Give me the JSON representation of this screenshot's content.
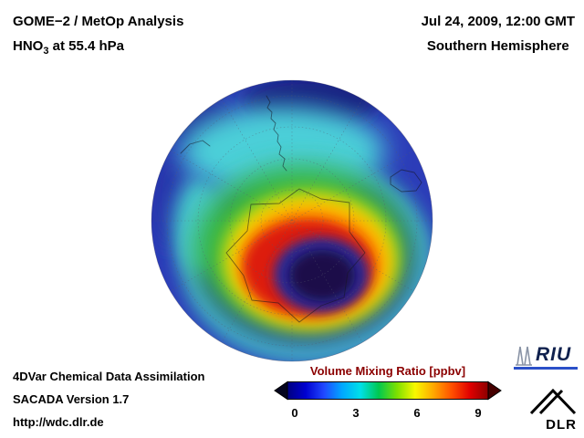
{
  "header": {
    "title_line1": "GOME−2 / MetOp Analysis",
    "species_prefix": "HNO",
    "species_sub": "3",
    "species_suffix": " at 55.4 hPa",
    "datetime": "Jul 24, 2009, 12:00 GMT",
    "region": "Southern Hemisphere"
  },
  "footer": {
    "line1": "4DVar Chemical Data Assimilation",
    "line2": "SACADA Version 1.7",
    "line3": "http://wdc.dlr.de"
  },
  "colorbar": {
    "title": "Volume Mixing Ratio [ppbv]",
    "ticks": [
      "0",
      "3",
      "6",
      "9"
    ],
    "title_color": "#8b0000",
    "under_arrow_color": "#05051e",
    "over_arrow_color": "#460000",
    "gradient": [
      "#000080",
      "#0000d0",
      "#2048ff",
      "#00a8ff",
      "#00e0e8",
      "#00c850",
      "#7de000",
      "#f8f800",
      "#ffa800",
      "#ff5000",
      "#e00000",
      "#8c0000"
    ]
  },
  "logos": {
    "riu_text": "RIU",
    "dlr_text": "DLR"
  },
  "chart_data": {
    "type": "heatmap",
    "title": "GOME-2 / MetOp Analysis — HNO3 at 55.4 hPa",
    "datetime": "Jul 24, 2009, 12:00 GMT",
    "projection": "Southern Hemisphere polar view (pole-centered disc, equator at rim)",
    "variable": "HNO3 volume mixing ratio",
    "units": "ppbv",
    "colorbar_range": [
      0,
      10
    ],
    "colorbar_ticks": [
      0,
      3,
      6,
      9
    ],
    "legend_position": "bottom-center",
    "grid": "dotted graticule with coastlines overlaid",
    "regions": [
      {
        "region": "vortex core, offset off-pole toward lower right of disc",
        "approx_value_ppbv": 0.5
      },
      {
        "region": "inner vortex dark-blue ring around core",
        "approx_value_ppbv": 1.5
      },
      {
        "region": "vortex collar maximum ring (red), thickest on left/lower-left",
        "approx_value_ppbv": 8.5
      },
      {
        "region": "orange band around collar",
        "approx_value_ppbv": 7
      },
      {
        "region": "yellow band outside collar",
        "approx_value_ppbv": 6
      },
      {
        "region": "midlatitude green band",
        "approx_value_ppbv": 4.5
      },
      {
        "region": "subtropical cyan band (upper half and left of disc)",
        "approx_value_ppbv": 3
      },
      {
        "region": "outer tropical blue rim",
        "approx_value_ppbv": 1.5
      },
      {
        "region": "dark navy patch at top rim",
        "approx_value_ppbv": 0.8
      }
    ]
  }
}
